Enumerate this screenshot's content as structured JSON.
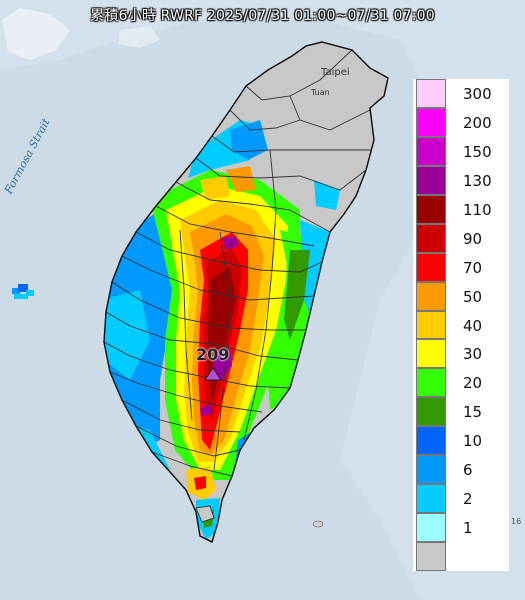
{
  "title": "累積6小時 RWRF 2025/07/31 01:00~07/31 07:00",
  "place_labels": {
    "taipei": "Taipei",
    "taoyuan": "Tuan",
    "strait": "Formosa Strait"
  },
  "max_marker": {
    "value": "209",
    "color": "#b84cdb"
  },
  "edge_label": "16",
  "legend": [
    {
      "label": "300",
      "color": "#ffccff"
    },
    {
      "label": "200",
      "color": "#ff00ff"
    },
    {
      "label": "150",
      "color": "#cc00cc"
    },
    {
      "label": "130",
      "color": "#990099"
    },
    {
      "label": "110",
      "color": "#990000"
    },
    {
      "label": "90",
      "color": "#cc0000"
    },
    {
      "label": "70",
      "color": "#ff0000"
    },
    {
      "label": "50",
      "color": "#ff9900"
    },
    {
      "label": "40",
      "color": "#ffcc00"
    },
    {
      "label": "30",
      "color": "#ffff00"
    },
    {
      "label": "20",
      "color": "#33ff00"
    },
    {
      "label": "15",
      "color": "#339900"
    },
    {
      "label": "10",
      "color": "#0066ff"
    },
    {
      "label": "6",
      "color": "#0099ff"
    },
    {
      "label": "2",
      "color": "#00ccff"
    },
    {
      "label": "1",
      "color": "#99ffff"
    },
    {
      "label": "",
      "color": "#c8c8c8"
    }
  ]
}
